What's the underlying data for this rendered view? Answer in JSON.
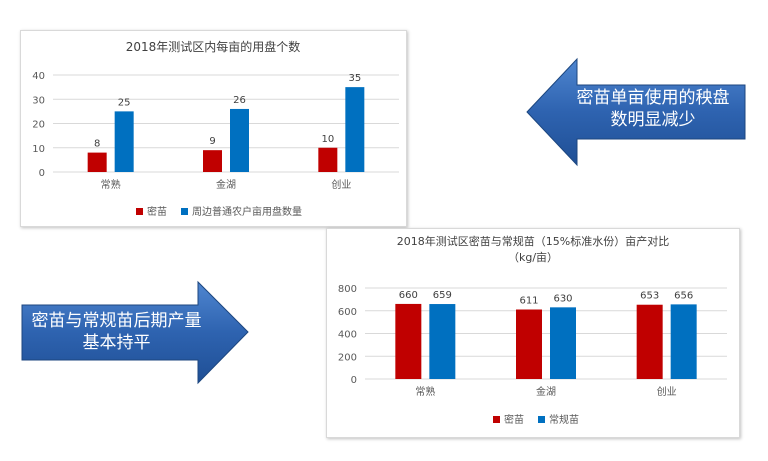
{
  "chart_data": [
    {
      "type": "bar",
      "title": "2018年测试区内每亩的用盘个数",
      "categories": [
        "常熟",
        "金湖",
        "创业"
      ],
      "series": [
        {
          "name": "密苗",
          "values": [
            8,
            9,
            10
          ],
          "color": "#c00000"
        },
        {
          "name": "周边普通农户亩用盘数量",
          "values": [
            25,
            26,
            35
          ],
          "color": "#0070c0"
        }
      ],
      "yticks": [
        "0",
        "10",
        "20",
        "30",
        "40"
      ],
      "ylim": [
        0,
        40
      ],
      "grid": true,
      "legend": "bottom"
    },
    {
      "type": "bar",
      "title": "2018年测试区密苗与常规苗（15%标准水份）亩产对比",
      "subtitle": "（kg/亩）",
      "categories": [
        "常熟",
        "金湖",
        "创业"
      ],
      "series": [
        {
          "name": "密苗",
          "values": [
            660,
            611,
            653
          ],
          "color": "#c00000"
        },
        {
          "name": "常规苗",
          "values": [
            659,
            630,
            656
          ],
          "color": "#0070c0"
        }
      ],
      "yticks": [
        "0",
        "200",
        "400",
        "600",
        "800"
      ],
      "ylim": [
        0,
        800
      ],
      "grid": true,
      "legend": "bottom"
    }
  ],
  "callouts": {
    "left_arrow_text": "密苗单亩使用的秧盘数明显减少",
    "right_arrow_text": "密苗与常规苗后期产量基本持平",
    "arrow_color": "#2e63b0"
  }
}
